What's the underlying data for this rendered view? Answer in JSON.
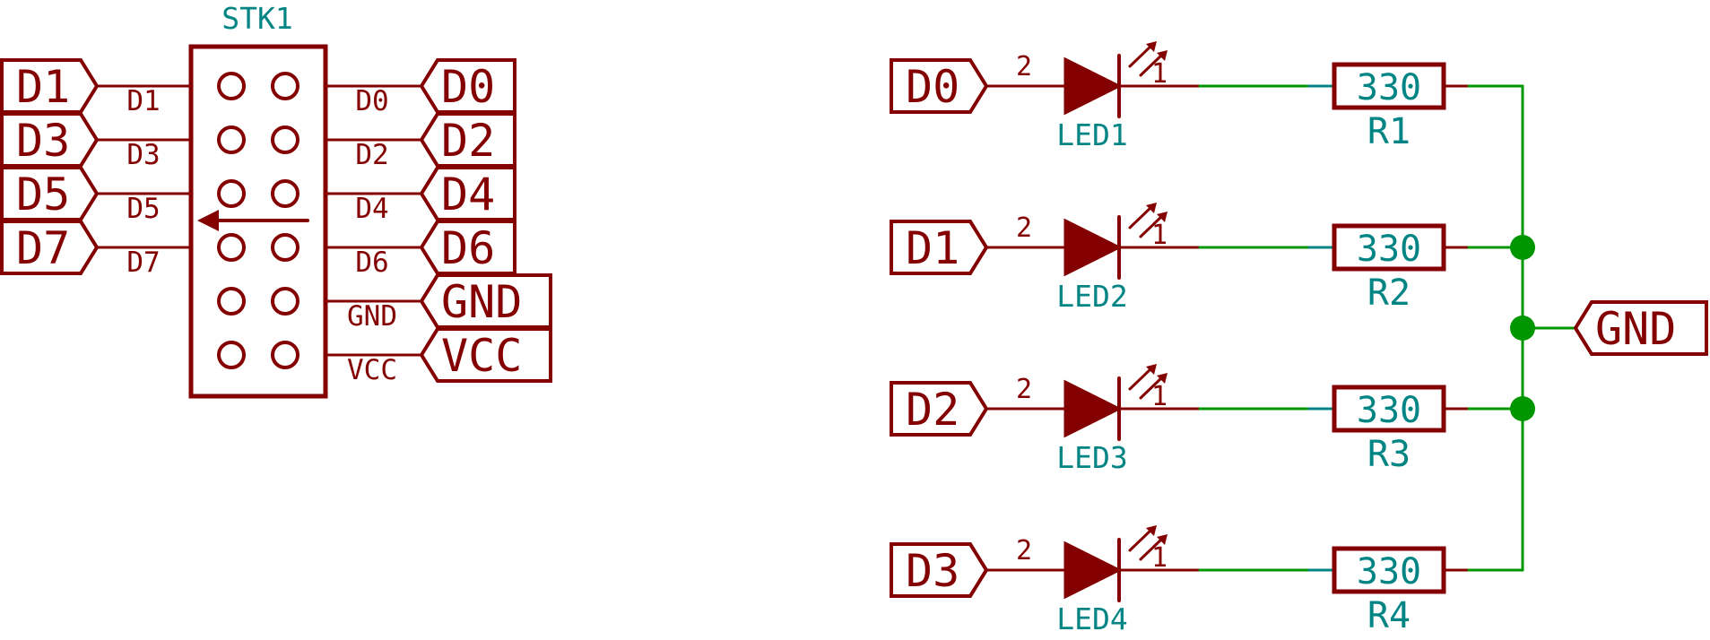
{
  "colors": {
    "component": "#840000",
    "reference": "#008484",
    "wire": "#009600",
    "junction": "#009600",
    "background": "#ffffff"
  },
  "connector": {
    "ref": "STK1",
    "left_pins": [
      "D1",
      "D3",
      "D5",
      "D7"
    ],
    "right_pins": [
      "D0",
      "D2",
      "D4",
      "D6",
      "GND",
      "VCC"
    ],
    "left_labels": [
      "D1",
      "D3",
      "D5",
      "D7"
    ],
    "right_labels": [
      "D0",
      "D2",
      "D4",
      "D6",
      "GND",
      "VCC"
    ]
  },
  "channels": [
    {
      "input_label": "D0",
      "led_ref": "LED1",
      "led_pin_anode": "2",
      "led_pin_cathode": "1",
      "resistor_value": "330",
      "resistor_ref": "R1"
    },
    {
      "input_label": "D1",
      "led_ref": "LED2",
      "led_pin_anode": "2",
      "led_pin_cathode": "1",
      "resistor_value": "330",
      "resistor_ref": "R2"
    },
    {
      "input_label": "D2",
      "led_ref": "LED3",
      "led_pin_anode": "2",
      "led_pin_cathode": "1",
      "resistor_value": "330",
      "resistor_ref": "R3"
    },
    {
      "input_label": "D3",
      "led_ref": "LED4",
      "led_pin_anode": "2",
      "led_pin_cathode": "1",
      "resistor_value": "330",
      "resistor_ref": "R4"
    }
  ],
  "ground_label": "GND"
}
